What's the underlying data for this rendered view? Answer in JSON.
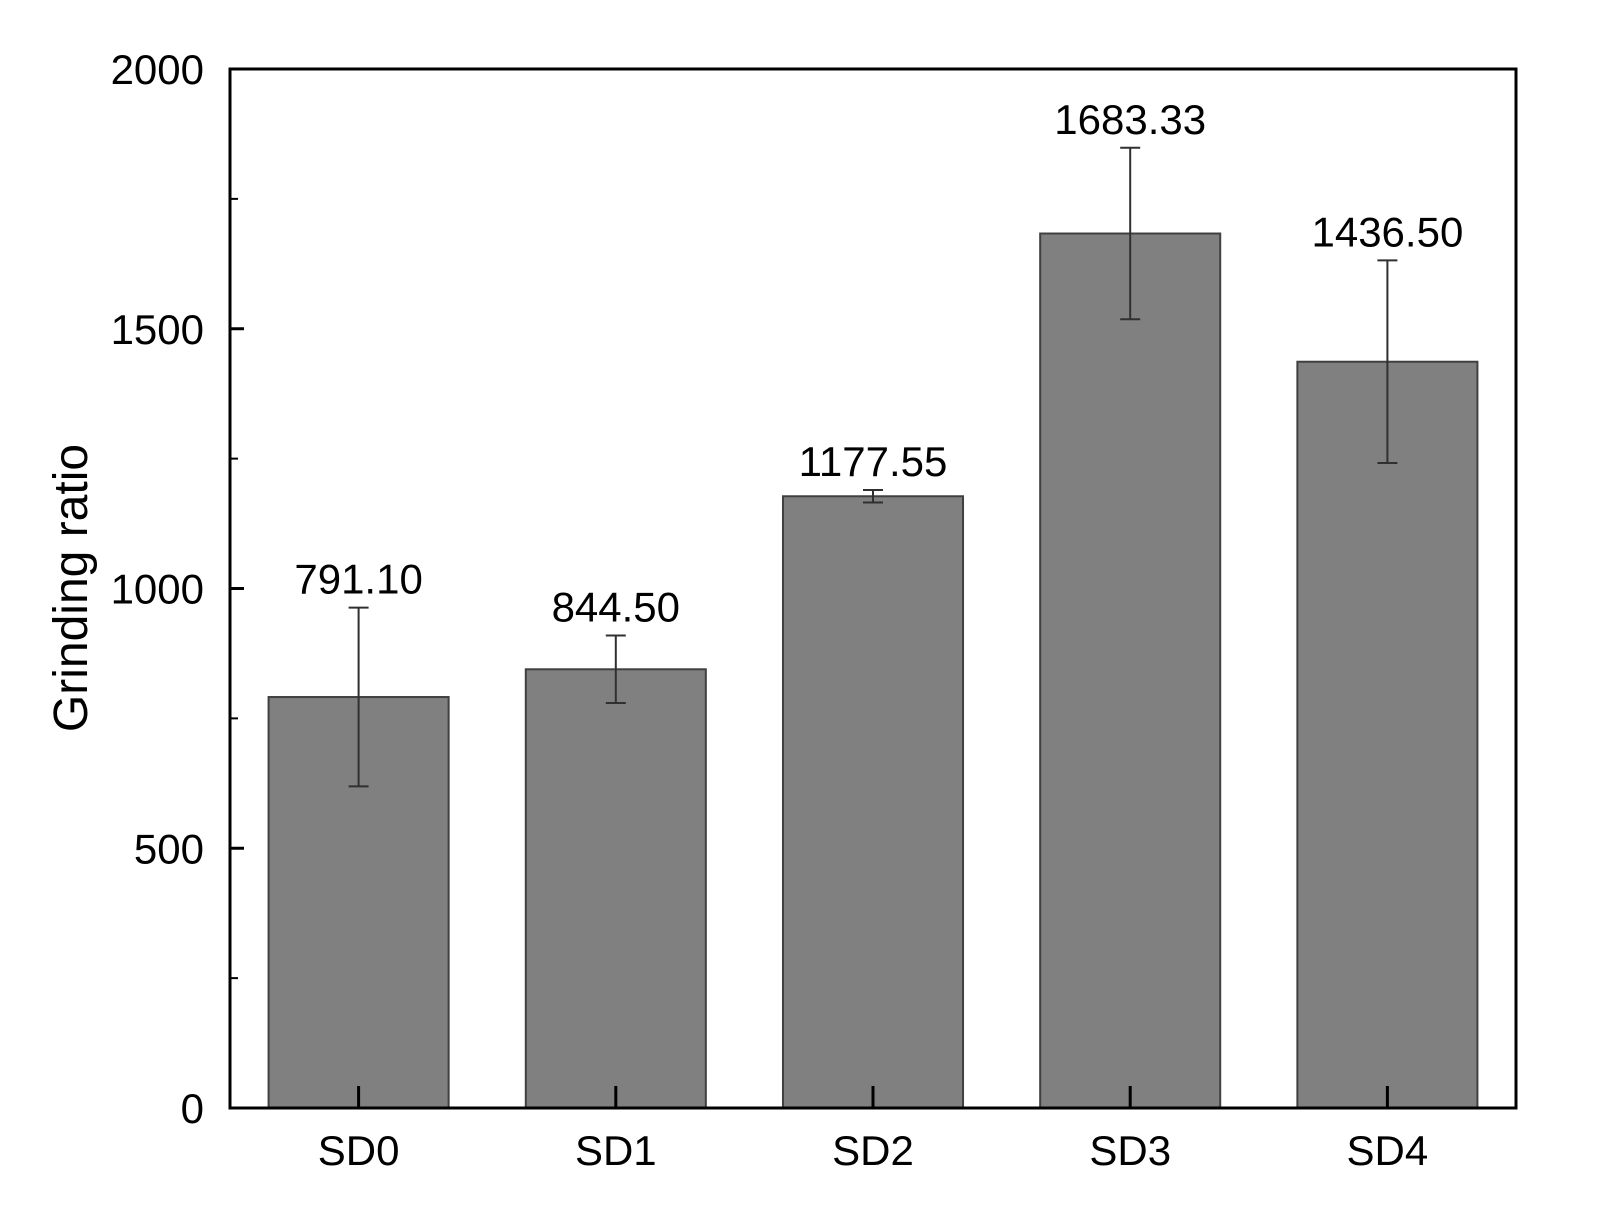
{
  "chart_data": {
    "type": "bar",
    "title": "",
    "xlabel": "",
    "ylabel": "Grinding ratio",
    "categories": [
      "SD0",
      "SD1",
      "SD2",
      "SD3",
      "SD4"
    ],
    "series": [
      {
        "values": [
          791.1,
          844.5,
          1177.55,
          1683.33,
          1436.5
        ],
        "error": [
          172,
          65,
          12,
          165,
          195
        ],
        "value_labels": [
          "791.10",
          "844.50",
          "1177.55",
          "1683.33",
          "1436.50"
        ]
      }
    ],
    "ylim": [
      0,
      2000
    ],
    "yticks": [
      0,
      500,
      1000,
      1500,
      2000
    ],
    "yticks_minor": [
      250,
      750,
      1250,
      1750
    ],
    "ytick_labels": [
      "0",
      "500",
      "1000",
      "1500",
      "2000"
    ],
    "grid": false,
    "legend": "none",
    "colors": {
      "bar_fill": "#808080",
      "bar_stroke": "#404040",
      "axis": "#000000",
      "error_bar": "#303030"
    }
  }
}
